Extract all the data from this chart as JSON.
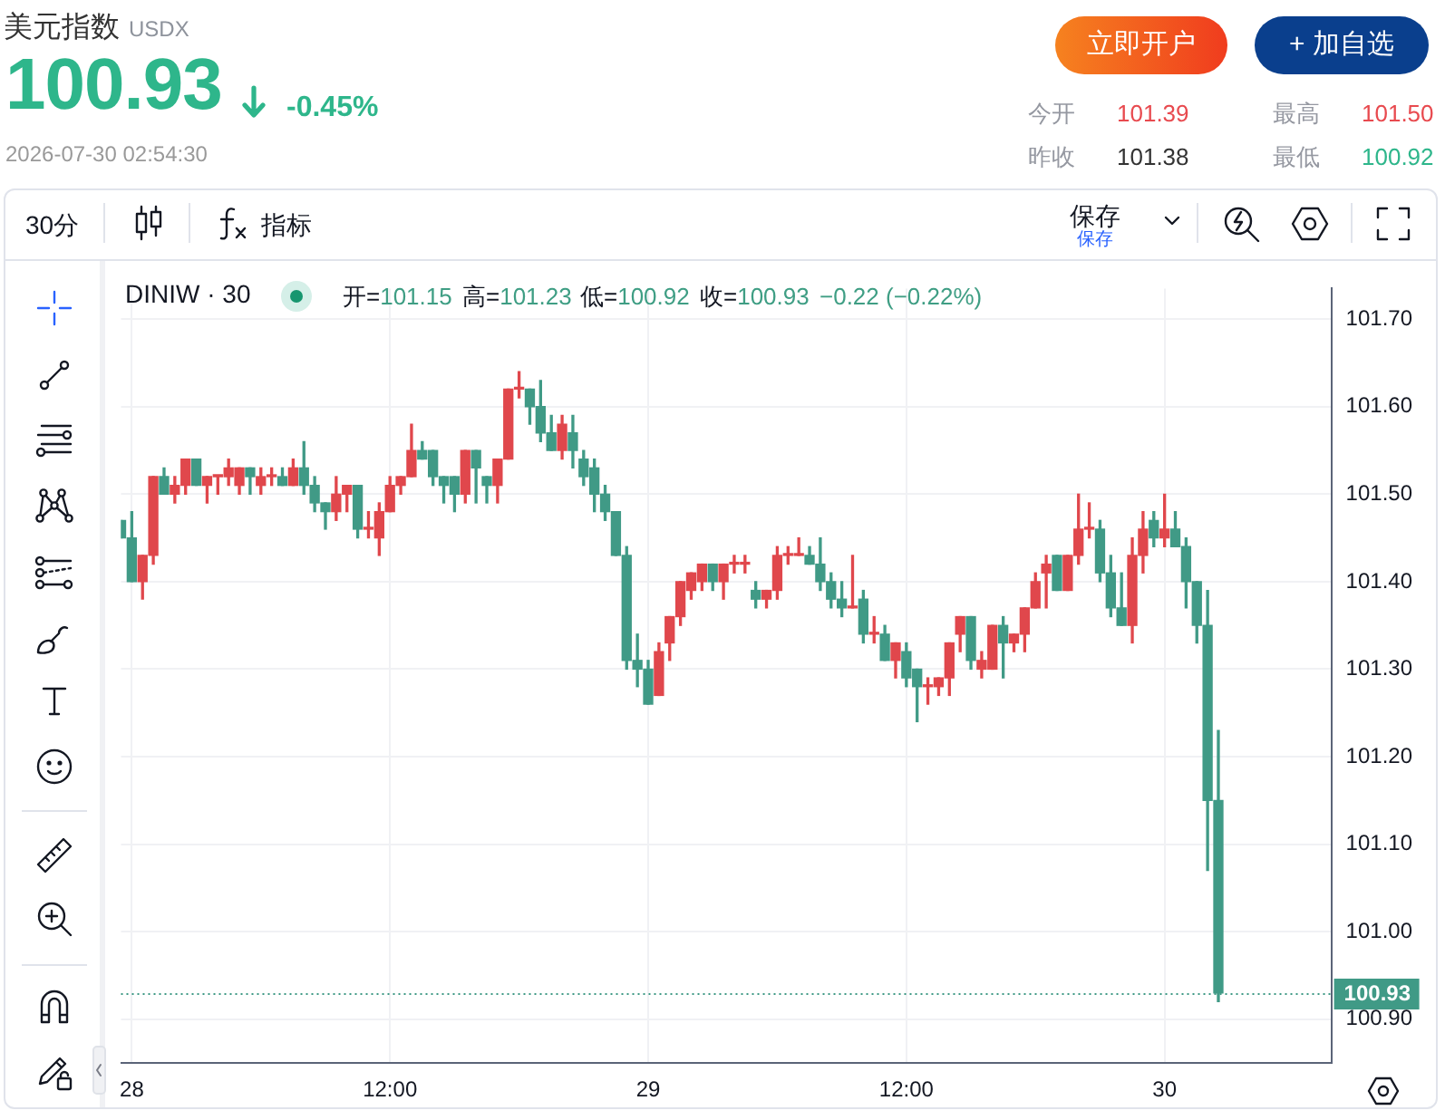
{
  "chart_data": {
    "type": "candlestick",
    "title": "美元指数",
    "subtitle": "USDX",
    "annotations": [
      "100.93",
      "-0.45%",
      "2026-07-30 02:54:30",
      "立即开户",
      "+ 加自选",
      "今开",
      "101.39",
      "最高",
      "101.50",
      "昨收",
      "101.38",
      "最低",
      "100.92",
      "30分",
      "指标",
      "保存",
      "保存",
      "DINIW · 30",
      "开=101.15",
      "高=101.23",
      "低=100.92",
      "收=100.93",
      "−0.22 (−0.22%)"
    ],
    "x": [
      "2026-07-27T23:30",
      "2026-07-28T00:00",
      "2026-07-28T00:30",
      "2026-07-28T01:00",
      "2026-07-28T01:30",
      "2026-07-28T02:00",
      "2026-07-28T02:30",
      "2026-07-28T03:00",
      "2026-07-28T03:30",
      "2026-07-28T04:00",
      "2026-07-28T04:30",
      "2026-07-28T05:00",
      "2026-07-28T05:30",
      "2026-07-28T06:00",
      "2026-07-28T06:30",
      "2026-07-28T07:00",
      "2026-07-28T07:30",
      "2026-07-28T08:00",
      "2026-07-28T08:30",
      "2026-07-28T09:00",
      "2026-07-28T09:30",
      "2026-07-28T10:00",
      "2026-07-28T10:30",
      "2026-07-28T11:00",
      "2026-07-28T11:30",
      "2026-07-28T12:00",
      "2026-07-28T12:30",
      "2026-07-28T13:00",
      "2026-07-28T13:30",
      "2026-07-28T14:00",
      "2026-07-28T14:30",
      "2026-07-28T15:00",
      "2026-07-28T15:30",
      "2026-07-28T16:00",
      "2026-07-28T16:30",
      "2026-07-28T17:00",
      "2026-07-28T17:30",
      "2026-07-28T18:00",
      "2026-07-28T18:30",
      "2026-07-28T19:00",
      "2026-07-28T19:30",
      "2026-07-28T20:00",
      "2026-07-28T20:30",
      "2026-07-28T21:00",
      "2026-07-28T21:30",
      "2026-07-28T22:00",
      "2026-07-28T22:30",
      "2026-07-28T23:00",
      "2026-07-28T23:30",
      "2026-07-29T00:00",
      "2026-07-29T00:30",
      "2026-07-29T01:00",
      "2026-07-29T01:30",
      "2026-07-29T02:00",
      "2026-07-29T02:30",
      "2026-07-29T03:00",
      "2026-07-29T03:30",
      "2026-07-29T04:00",
      "2026-07-29T04:30",
      "2026-07-29T05:00",
      "2026-07-29T05:30",
      "2026-07-29T06:00",
      "2026-07-29T06:30",
      "2026-07-29T07:00",
      "2026-07-29T07:30",
      "2026-07-29T08:00",
      "2026-07-29T08:30",
      "2026-07-29T09:00",
      "2026-07-29T09:30",
      "2026-07-29T10:00",
      "2026-07-29T10:30",
      "2026-07-29T11:00",
      "2026-07-29T11:30",
      "2026-07-29T12:00",
      "2026-07-29T12:30",
      "2026-07-29T13:00",
      "2026-07-29T13:30",
      "2026-07-29T14:00",
      "2026-07-29T14:30",
      "2026-07-29T15:00",
      "2026-07-29T15:30",
      "2026-07-29T16:00",
      "2026-07-29T16:30",
      "2026-07-29T17:00",
      "2026-07-29T17:30",
      "2026-07-29T18:00",
      "2026-07-29T18:30",
      "2026-07-29T19:00",
      "2026-07-29T19:30",
      "2026-07-29T20:00",
      "2026-07-29T20:30",
      "2026-07-29T21:00",
      "2026-07-29T21:30",
      "2026-07-29T22:00",
      "2026-07-29T22:30",
      "2026-07-29T23:00",
      "2026-07-29T23:30",
      "2026-07-30T00:00",
      "2026-07-30T00:30",
      "2026-07-30T01:00",
      "2026-07-30T01:30",
      "2026-07-30T02:00",
      "2026-07-30T02:30"
    ],
    "ohlc": [
      [
        101.47,
        101.47,
        101.45,
        101.45
      ],
      [
        101.45,
        101.48,
        101.4,
        101.4
      ],
      [
        101.4,
        101.43,
        101.38,
        101.43
      ],
      [
        101.43,
        101.52,
        101.42,
        101.52
      ],
      [
        101.52,
        101.53,
        101.5,
        101.5
      ],
      [
        101.5,
        101.52,
        101.49,
        101.51
      ],
      [
        101.51,
        101.54,
        101.5,
        101.54
      ],
      [
        101.54,
        101.54,
        101.51,
        101.51
      ],
      [
        101.51,
        101.52,
        101.49,
        101.52
      ],
      [
        101.52,
        101.52,
        101.5,
        101.52
      ],
      [
        101.52,
        101.54,
        101.51,
        101.53
      ],
      [
        101.51,
        101.53,
        101.5,
        101.53
      ],
      [
        101.53,
        101.53,
        101.5,
        101.52
      ],
      [
        101.51,
        101.53,
        101.5,
        101.52
      ],
      [
        101.52,
        101.53,
        101.51,
        101.52
      ],
      [
        101.52,
        101.53,
        101.51,
        101.51
      ],
      [
        101.51,
        101.54,
        101.51,
        101.53
      ],
      [
        101.53,
        101.56,
        101.5,
        101.51
      ],
      [
        101.51,
        101.52,
        101.48,
        101.49
      ],
      [
        101.49,
        101.49,
        101.46,
        101.48
      ],
      [
        101.48,
        101.52,
        101.47,
        101.5
      ],
      [
        101.5,
        101.51,
        101.48,
        101.51
      ],
      [
        101.51,
        101.51,
        101.45,
        101.46
      ],
      [
        101.46,
        101.48,
        101.45,
        101.46
      ],
      [
        101.45,
        101.49,
        101.43,
        101.48
      ],
      [
        101.48,
        101.52,
        101.48,
        101.51
      ],
      [
        101.51,
        101.52,
        101.5,
        101.52
      ],
      [
        101.52,
        101.58,
        101.52,
        101.55
      ],
      [
        101.55,
        101.56,
        101.54,
        101.54
      ],
      [
        101.55,
        101.55,
        101.51,
        101.52
      ],
      [
        101.52,
        101.52,
        101.49,
        101.51
      ],
      [
        101.52,
        101.52,
        101.48,
        101.5
      ],
      [
        101.5,
        101.55,
        101.49,
        101.55
      ],
      [
        101.55,
        101.55,
        101.49,
        101.53
      ],
      [
        101.52,
        101.52,
        101.49,
        101.51
      ],
      [
        101.51,
        101.54,
        101.49,
        101.54
      ],
      [
        101.54,
        101.62,
        101.54,
        101.62
      ],
      [
        101.62,
        101.64,
        101.61,
        101.62
      ],
      [
        101.62,
        101.62,
        101.58,
        101.6
      ],
      [
        101.6,
        101.63,
        101.56,
        101.57
      ],
      [
        101.57,
        101.59,
        101.55,
        101.55
      ],
      [
        101.55,
        101.59,
        101.54,
        101.58
      ],
      [
        101.57,
        101.59,
        101.53,
        101.55
      ],
      [
        101.54,
        101.55,
        101.51,
        101.52
      ],
      [
        101.53,
        101.54,
        101.48,
        101.5
      ],
      [
        101.5,
        101.51,
        101.47,
        101.48
      ],
      [
        101.48,
        101.48,
        101.43,
        101.43
      ],
      [
        101.43,
        101.44,
        101.3,
        101.31
      ],
      [
        101.31,
        101.34,
        101.28,
        101.3
      ],
      [
        101.3,
        101.31,
        101.26,
        101.26
      ],
      [
        101.27,
        101.33,
        101.27,
        101.32
      ],
      [
        101.33,
        101.36,
        101.31,
        101.36
      ],
      [
        101.36,
        101.4,
        101.35,
        101.4
      ],
      [
        101.39,
        101.41,
        101.38,
        101.41
      ],
      [
        101.4,
        101.42,
        101.39,
        101.42
      ],
      [
        101.42,
        101.42,
        101.39,
        101.4
      ],
      [
        101.4,
        101.42,
        101.38,
        101.42
      ],
      [
        101.42,
        101.43,
        101.41,
        101.42
      ],
      [
        101.42,
        101.43,
        101.41,
        101.42
      ],
      [
        101.39,
        101.4,
        101.37,
        101.38
      ],
      [
        101.38,
        101.39,
        101.37,
        101.39
      ],
      [
        101.39,
        101.44,
        101.38,
        101.43
      ],
      [
        101.43,
        101.44,
        101.42,
        101.43
      ],
      [
        101.43,
        101.45,
        101.43,
        101.43
      ],
      [
        101.43,
        101.44,
        101.42,
        101.42
      ],
      [
        101.42,
        101.45,
        101.39,
        101.4
      ],
      [
        101.4,
        101.41,
        101.37,
        101.38
      ],
      [
        101.38,
        101.4,
        101.36,
        101.37
      ],
      [
        101.37,
        101.43,
        101.37,
        101.37
      ],
      [
        101.38,
        101.39,
        101.33,
        101.34
      ],
      [
        101.34,
        101.36,
        101.33,
        101.34
      ],
      [
        101.34,
        101.35,
        101.31,
        101.31
      ],
      [
        101.31,
        101.33,
        101.29,
        101.33
      ],
      [
        101.32,
        101.33,
        101.28,
        101.29
      ],
      [
        101.3,
        101.3,
        101.24,
        101.28
      ],
      [
        101.28,
        101.29,
        101.26,
        101.28
      ],
      [
        101.28,
        101.29,
        101.27,
        101.29
      ],
      [
        101.29,
        101.33,
        101.27,
        101.33
      ],
      [
        101.34,
        101.36,
        101.32,
        101.36
      ],
      [
        101.36,
        101.36,
        101.3,
        101.31
      ],
      [
        101.3,
        101.32,
        101.29,
        101.31
      ],
      [
        101.3,
        101.35,
        101.3,
        101.35
      ],
      [
        101.35,
        101.36,
        101.29,
        101.33
      ],
      [
        101.33,
        101.34,
        101.32,
        101.34
      ],
      [
        101.34,
        101.37,
        101.32,
        101.37
      ],
      [
        101.37,
        101.41,
        101.37,
        101.4
      ],
      [
        101.41,
        101.43,
        101.37,
        101.42
      ],
      [
        101.43,
        101.43,
        101.39,
        101.39
      ],
      [
        101.39,
        101.43,
        101.39,
        101.43
      ],
      [
        101.43,
        101.5,
        101.42,
        101.46
      ],
      [
        101.46,
        101.49,
        101.45,
        101.46
      ],
      [
        101.46,
        101.47,
        101.4,
        101.41
      ],
      [
        101.41,
        101.43,
        101.36,
        101.37
      ],
      [
        101.37,
        101.41,
        101.35,
        101.35
      ],
      [
        101.35,
        101.45,
        101.33,
        101.43
      ],
      [
        101.43,
        101.48,
        101.41,
        101.46
      ],
      [
        101.47,
        101.48,
        101.44,
        101.45
      ],
      [
        101.45,
        101.5,
        101.44,
        101.46
      ],
      [
        101.46,
        101.48,
        101.44,
        101.44
      ],
      [
        101.44,
        101.45,
        101.37,
        101.4
      ],
      [
        101.4,
        101.4,
        101.33,
        101.35
      ],
      [
        101.35,
        101.39,
        101.07,
        101.15
      ],
      [
        101.15,
        101.23,
        100.92,
        100.93
      ]
    ],
    "colors": [
      "#409a86",
      "#409a86",
      "#e0474c",
      "#e0474c",
      "#409a86",
      "#e0474c",
      "#e0474c",
      "#409a86",
      "#e0474c",
      "#e0474c",
      "#e0474c",
      "#e0474c",
      "#409a86",
      "#e0474c",
      "#e0474c",
      "#409a86",
      "#e0474c",
      "#409a86",
      "#409a86",
      "#409a86",
      "#e0474c",
      "#e0474c",
      "#409a86",
      "#e0474c",
      "#e0474c",
      "#e0474c",
      "#e0474c",
      "#e0474c",
      "#409a86",
      "#409a86",
      "#409a86",
      "#409a86",
      "#e0474c",
      "#409a86",
      "#409a86",
      "#e0474c",
      "#e0474c",
      "#e0474c",
      "#409a86",
      "#409a86",
      "#409a86",
      "#e0474c",
      "#409a86",
      "#409a86",
      "#409a86",
      "#409a86",
      "#409a86",
      "#409a86",
      "#409a86",
      "#409a86",
      "#e0474c",
      "#e0474c",
      "#e0474c",
      "#e0474c",
      "#e0474c",
      "#409a86",
      "#e0474c",
      "#e0474c",
      "#e0474c",
      "#409a86",
      "#e0474c",
      "#e0474c",
      "#e0474c",
      "#e0474c",
      "#409a86",
      "#409a86",
      "#409a86",
      "#409a86",
      "#e0474c",
      "#409a86",
      "#e0474c",
      "#409a86",
      "#e0474c",
      "#409a86",
      "#409a86",
      "#e0474c",
      "#e0474c",
      "#e0474c",
      "#e0474c",
      "#409a86",
      "#e0474c",
      "#e0474c",
      "#409a86",
      "#e0474c",
      "#e0474c",
      "#e0474c",
      "#e0474c",
      "#409a86",
      "#e0474c",
      "#e0474c",
      "#e0474c",
      "#409a86",
      "#409a86",
      "#409a86",
      "#e0474c",
      "#e0474c",
      "#409a86",
      "#e0474c",
      "#409a86",
      "#409a86",
      "#409a86",
      "#409a86",
      "#409a86"
    ],
    "xlim": [
      "2026-07-27T23:30",
      "2026-07-30T07:45"
    ],
    "xticks": [
      {
        "value": "2026-07-28T00:00",
        "label": "28"
      },
      {
        "value": "2026-07-28T12:00",
        "label": "12:00"
      },
      {
        "value": "2026-07-29T00:00",
        "label": "29"
      },
      {
        "value": "2026-07-29T12:00",
        "label": "12:00"
      },
      {
        "value": "2026-07-30T00:00",
        "label": "30"
      }
    ],
    "ylim": [
      100.85,
      101.735
    ],
    "yticks": [
      {
        "value": 100.9,
        "label": "100.90"
      },
      {
        "value": 101.0,
        "label": "101.00"
      },
      {
        "value": 101.1,
        "label": "101.10"
      },
      {
        "value": 101.2,
        "label": "101.20"
      },
      {
        "value": 101.3,
        "label": "101.30"
      },
      {
        "value": 101.4,
        "label": "101.40"
      },
      {
        "value": 101.5,
        "label": "101.50"
      },
      {
        "value": 101.6,
        "label": "101.60"
      },
      {
        "value": 101.7,
        "label": "101.70"
      }
    ],
    "grid": true,
    "ref_lines": [
      {
        "axis": "y",
        "value": 100.93,
        "label": "100.93",
        "color": "#409a86",
        "line_style": "dotted"
      }
    ]
  }
}
